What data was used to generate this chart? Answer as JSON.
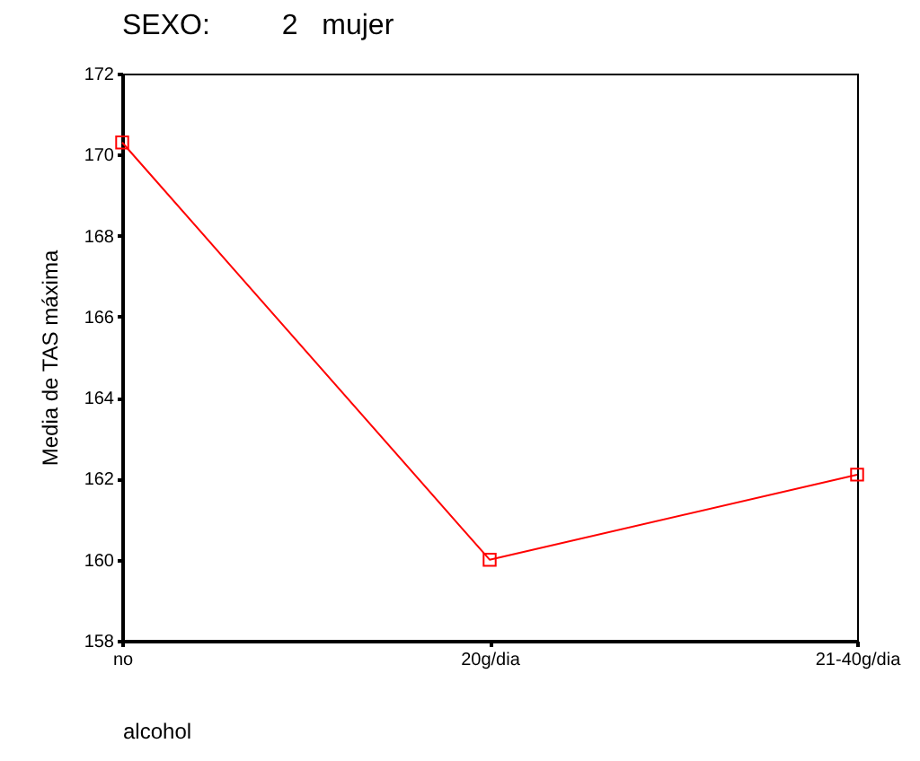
{
  "chart_data": {
    "type": "line",
    "title": "SEXO:         2   mujer",
    "xlabel": "alcohol",
    "ylabel": "Media de TAS máxima",
    "categories": [
      "no",
      "20g/dia",
      "21-40g/dia"
    ],
    "series": [
      {
        "color": "#ff0000",
        "values": [
          170.3,
          160.0,
          162.1
        ]
      }
    ],
    "ylim": [
      158,
      172
    ],
    "yticks": [
      158,
      160,
      162,
      164,
      166,
      168,
      170,
      172
    ],
    "grid": false,
    "marker": "square",
    "line_style": "solid"
  }
}
